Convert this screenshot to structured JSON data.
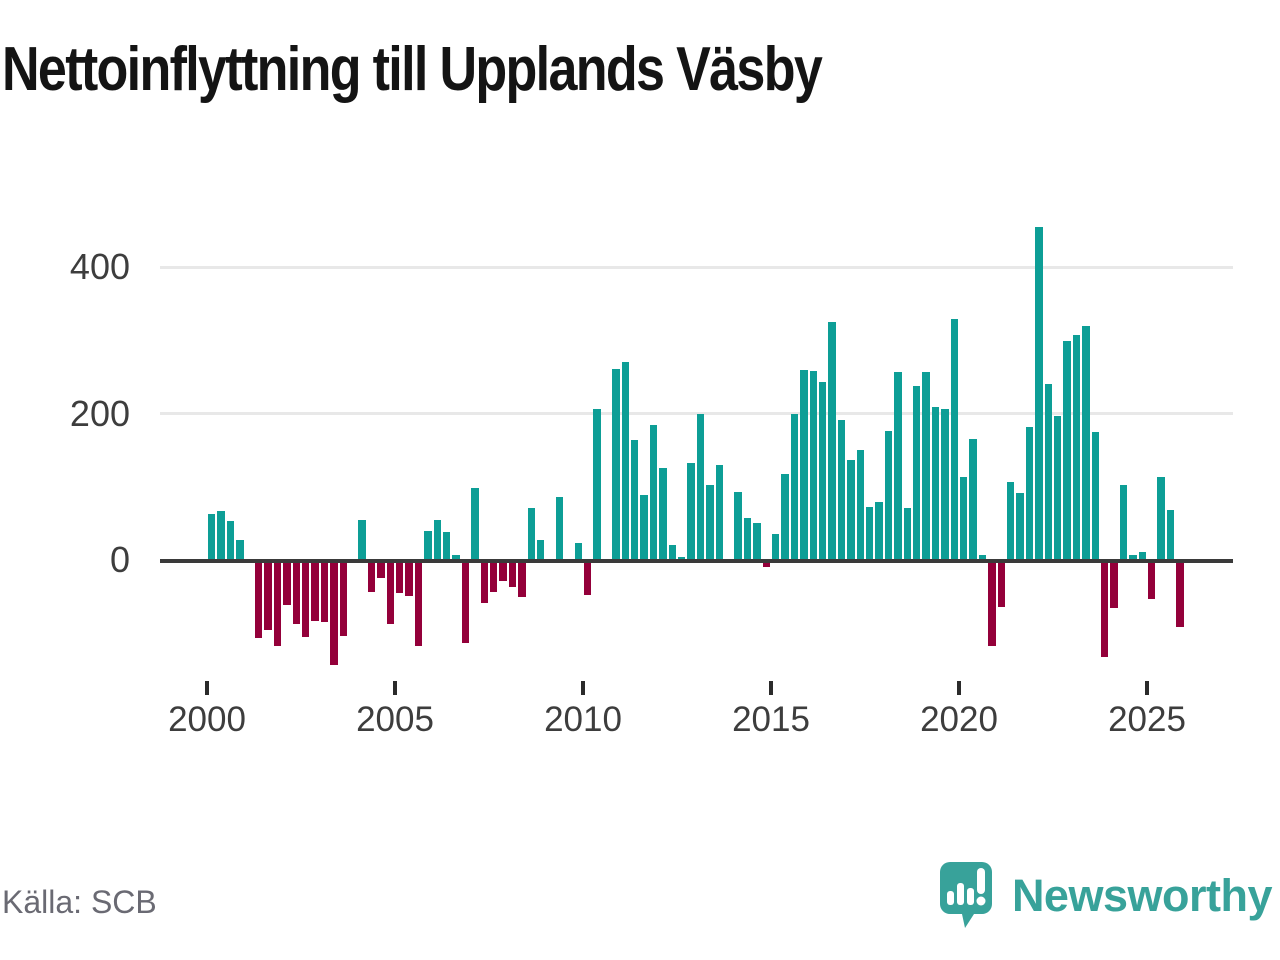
{
  "title": "Nettoinflyttning till Upplands Väsby",
  "source": "Källa: SCB",
  "branding": {
    "name": "Newsworthy",
    "logo_icon": "speech-bubble-bar-chart-icon"
  },
  "colors": {
    "positive_bar": "#0D9E96",
    "negative_bar": "#94003A",
    "brand_teal": "#38A29A",
    "axis_text": "#3D3D3D",
    "grid": "#E8E8E8",
    "axis_line": "#3A3A3A",
    "title_text": "#141414",
    "source_text": "#6A6A73"
  },
  "chart_data": {
    "type": "bar",
    "title": "Nettoinflyttning till Upplands Väsby",
    "ylabel": "",
    "xlabel": "",
    "unit": "persons (net migration per quarter)",
    "frequency": "quarterly",
    "start_year": 2000,
    "start_quarter": 1,
    "grid": "horizontal",
    "legend": "none",
    "ylim": [
      -165,
      480
    ],
    "y_ticks": [
      0,
      200,
      400
    ],
    "y_tick_labels": [
      "0",
      "200",
      "400"
    ],
    "x_tick_years": [
      2000,
      2005,
      2010,
      2015,
      2020,
      2025
    ],
    "x_tick_labels": [
      "2000",
      "2005",
      "2010",
      "2015",
      "2020",
      "2025"
    ],
    "values": [
      63,
      67,
      53,
      27,
      0,
      -103,
      -91,
      -113,
      -57,
      -84,
      -101,
      -79,
      -81,
      -140,
      -100,
      0,
      54,
      -39,
      -20,
      -84,
      -41,
      -45,
      -113,
      40,
      55,
      38,
      7,
      -109,
      99,
      -55,
      -40,
      -25,
      -33,
      -47,
      71,
      28,
      0,
      86,
      0,
      23,
      -44,
      206,
      0,
      261,
      270,
      164,
      89,
      185,
      126,
      21,
      4,
      132,
      199,
      103,
      130,
      0,
      93,
      57,
      50,
      -6,
      35,
      118,
      200,
      260,
      259,
      243,
      325,
      191,
      137,
      150,
      73,
      79,
      177,
      257,
      71,
      238,
      257,
      209,
      207,
      330,
      114,
      165,
      7,
      -114,
      -60,
      107,
      91,
      182,
      455,
      240,
      197,
      299,
      308,
      320,
      175,
      -129,
      -61,
      102,
      7,
      11,
      -49,
      113,
      68,
      -88
    ]
  }
}
